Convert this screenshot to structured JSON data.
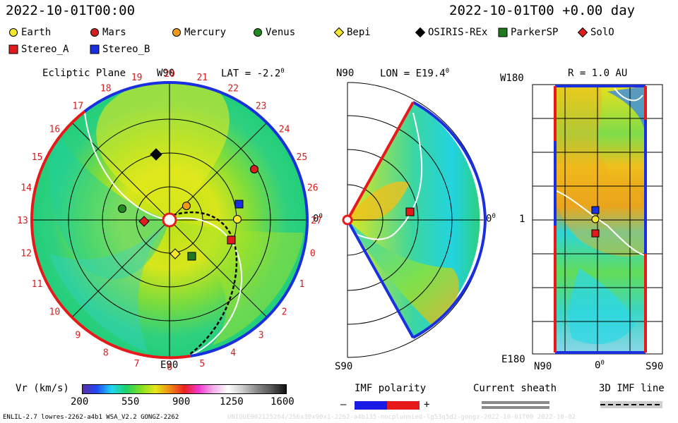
{
  "header": {
    "date_left": "2022-10-01T00:00",
    "date_right": "2022-10-01T00 +0.00 day"
  },
  "legend": [
    {
      "label": "Earth",
      "shape": "circle",
      "color": "#f5e72b"
    },
    {
      "label": "Mars",
      "shape": "circle",
      "color": "#d51f1f"
    },
    {
      "label": "Mercury",
      "shape": "circle",
      "color": "#f19a1a"
    },
    {
      "label": "Venus",
      "shape": "circle",
      "color": "#1f8b1f"
    },
    {
      "label": "Bepi",
      "shape": "diamond",
      "color": "#f5e72b"
    },
    {
      "label": "OSIRIS-REx",
      "shape": "diamond",
      "color": "#000000"
    },
    {
      "label": "ParkerSP",
      "shape": "square",
      "color": "#1f7a1f"
    },
    {
      "label": "SolO",
      "shape": "diamond",
      "color": "#e11b1b"
    },
    {
      "label": "Stereo_A",
      "shape": "square",
      "color": "#e11b1b"
    },
    {
      "label": "Stereo_B",
      "shape": "square",
      "color": "#1a2fe0"
    }
  ],
  "ecliptic": {
    "title": "Ecliptic Plane",
    "lat_label": "LAT = -2.2",
    "deg": "0",
    "top_label": "W90",
    "bottom_label": "E90",
    "right_label": "0",
    "right_deg": "0",
    "rotation_numbers": [
      "20",
      "21",
      "22",
      "23",
      "24",
      "25",
      "26",
      "27",
      "0",
      "1",
      "2",
      "3",
      "4",
      "5",
      "6",
      "7",
      "8",
      "9",
      "10",
      "11",
      "12",
      "13",
      "14",
      "15",
      "16",
      "17",
      "18",
      "19"
    ]
  },
  "meridional": {
    "lon_label": "LON = E19.4",
    "deg": "0",
    "top_label": "N90",
    "bottom_label": "S90",
    "right_label": "0",
    "right_deg": "0"
  },
  "sphere": {
    "r_label": "R = 1.0 AU",
    "top_left": "W180",
    "bottom_left": "E180",
    "mid_left": "1",
    "bottom_axis": [
      "N90",
      "0",
      "S90"
    ],
    "bottom_deg": "0"
  },
  "colorbar": {
    "label": "Vr (km/s)",
    "ticks": [
      "200",
      "550",
      "900",
      "1250",
      "1600"
    ],
    "stops": [
      "#5a2ea8",
      "#1f4cf5",
      "#20d7f0",
      "#1fd26a",
      "#7ee01f",
      "#e6e81c",
      "#f08c14",
      "#ec1f1f",
      "#f03ad0",
      "#f2b0e8",
      "#ffffff",
      "#cccccc",
      "#8a8a8a",
      "#555555",
      "#111111"
    ]
  },
  "imf": {
    "title": "IMF polarity",
    "minus": "–",
    "plus": "+",
    "sheath_title": "Current sheath",
    "line_title": "3D IMF line",
    "neg_color": "#1a1ae6",
    "pos_color": "#e61a1a"
  },
  "footer": {
    "model": "ENLIL-2.7 lowres-2262-a4b1 WSA_V2.2 GONGZ-2262",
    "id": "UNIQUE002125264/256x30x90x1-2262-a4b135-nocplunnied-lg53q5d2-gongz-2022-10-01T00  2022-10-02"
  }
}
